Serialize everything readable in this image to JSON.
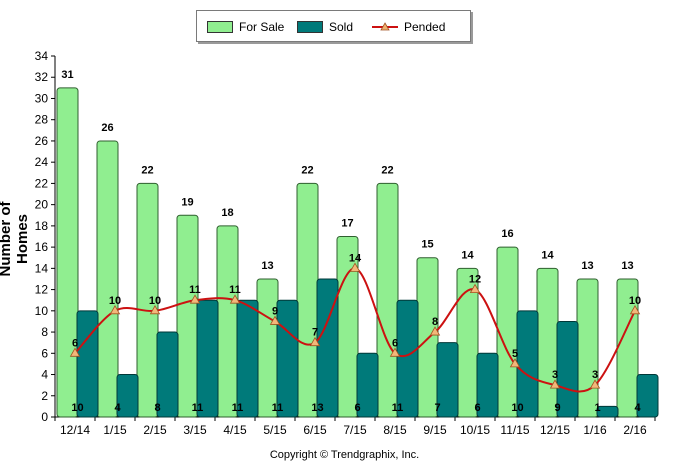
{
  "chart_data": {
    "type": "bar",
    "categories": [
      "12/14",
      "1/15",
      "2/15",
      "3/15",
      "4/15",
      "5/15",
      "6/15",
      "7/15",
      "8/15",
      "9/15",
      "10/15",
      "11/15",
      "12/15",
      "1/16",
      "2/16"
    ],
    "series": [
      {
        "name": "For Sale",
        "type": "bar",
        "color": "#90ee90",
        "values": [
          31,
          26,
          22,
          19,
          18,
          13,
          22,
          17,
          22,
          15,
          14,
          16,
          14,
          13,
          13
        ]
      },
      {
        "name": "Sold",
        "type": "bar",
        "color": "#007a7a",
        "values": [
          10,
          4,
          8,
          11,
          11,
          11,
          13,
          6,
          11,
          7,
          6,
          10,
          9,
          1,
          4
        ]
      },
      {
        "name": "Pended",
        "type": "line",
        "color": "#cc1111",
        "values": [
          6,
          10,
          10,
          11,
          11,
          9,
          7,
          14,
          6,
          8,
          12,
          5,
          3,
          3,
          10
        ]
      }
    ],
    "ylabel": "Number of Homes",
    "ylim": [
      0,
      34
    ],
    "yticks": [
      0,
      2,
      4,
      6,
      8,
      10,
      12,
      14,
      16,
      18,
      20,
      22,
      24,
      26,
      28,
      30,
      32,
      34
    ],
    "legend_position": "top-center",
    "grid": false
  },
  "copyright": "Copyright © Trendgraphix, Inc."
}
